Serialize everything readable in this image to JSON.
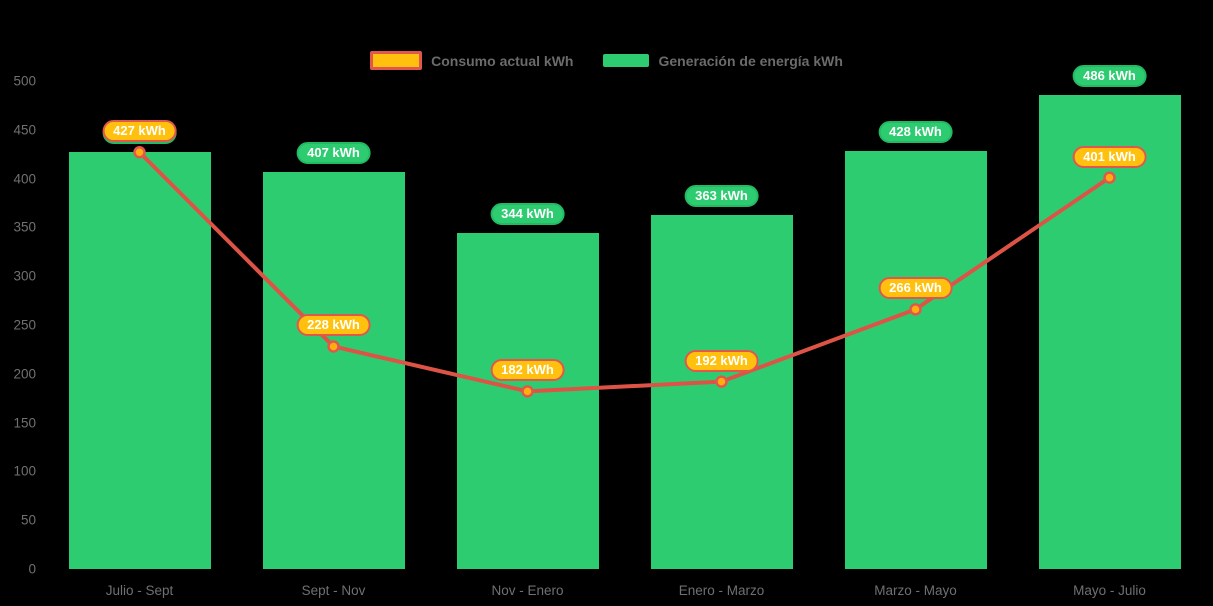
{
  "legend": {
    "items": [
      {
        "id": "consumo",
        "swatch": "line-swatch"
      },
      {
        "id": "generacion",
        "swatch": "bar-swatch"
      }
    ]
  },
  "colors": {
    "background": "#000000",
    "bar_fill": "#2ECC71",
    "bar_pill_fill": "#2ECC71",
    "bar_pill_border": "#23BA64",
    "line_stroke": "#DD5446",
    "point_fill": "#FFAE0D",
    "point_stroke": "#E2574C",
    "line_pill_fill": "#FFC10D",
    "line_pill_border": "#E2574C",
    "pill_text": "#FFFFFF",
    "axis_text": "#707070",
    "legend_text": "#6B6B6B"
  },
  "chart_data": {
    "type": "bar",
    "subtype": "bar-and-line-combo",
    "categories": [
      "Julio - Sept",
      "Sept - Nov",
      "Nov - Enero",
      "Enero - Marzo",
      "Marzo - Mayo",
      "Mayo - Julio"
    ],
    "series": [
      {
        "name": "Consumo actual kWh",
        "type": "line",
        "values": [
          427,
          228,
          182,
          192,
          266,
          401
        ]
      },
      {
        "name": "Generación de energía kWh",
        "type": "bar",
        "values": [
          427,
          407,
          344,
          363,
          428,
          486
        ]
      }
    ],
    "data_label_suffix": " kWh",
    "y_ticks": [
      0,
      50,
      100,
      150,
      200,
      250,
      300,
      350,
      400,
      450,
      500
    ],
    "ylim": [
      0,
      500
    ],
    "title": "",
    "xlabel": "",
    "ylabel": "",
    "grid": false,
    "legend_position": "top-center"
  }
}
